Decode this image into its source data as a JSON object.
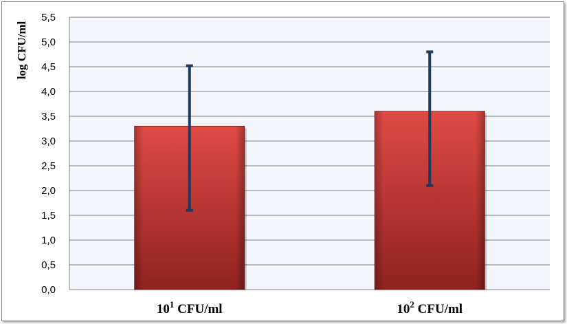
{
  "chart_data": {
    "type": "bar",
    "ylabel": "log CFU/ml",
    "xlabel": "",
    "ylim": [
      0,
      5.5
    ],
    "ytick_step": 0.5,
    "ytick_labels": [
      "0,0",
      "0,5",
      "1,0",
      "1,5",
      "2,0",
      "2,5",
      "3,0",
      "3,5",
      "4,0",
      "4,5",
      "5,0",
      "5,5"
    ],
    "categories": [
      {
        "base": "10",
        "exp": "1",
        "unit": " CFU/ml"
      },
      {
        "base": "10",
        "exp": "2",
        "unit": " CFU/ml"
      }
    ],
    "values": [
      3.3,
      3.6
    ],
    "error_low": [
      1.6,
      2.1
    ],
    "error_high": [
      4.52,
      4.8
    ],
    "grid": true,
    "legend": "none",
    "colors": {
      "bar": "#c0302e",
      "bar_light": "#e04a45",
      "bar_dark": "#8f2220",
      "error_bar": "#1f3a5f",
      "plot_bg": "#f2f5fb",
      "grid": "#7f7f7f"
    }
  }
}
